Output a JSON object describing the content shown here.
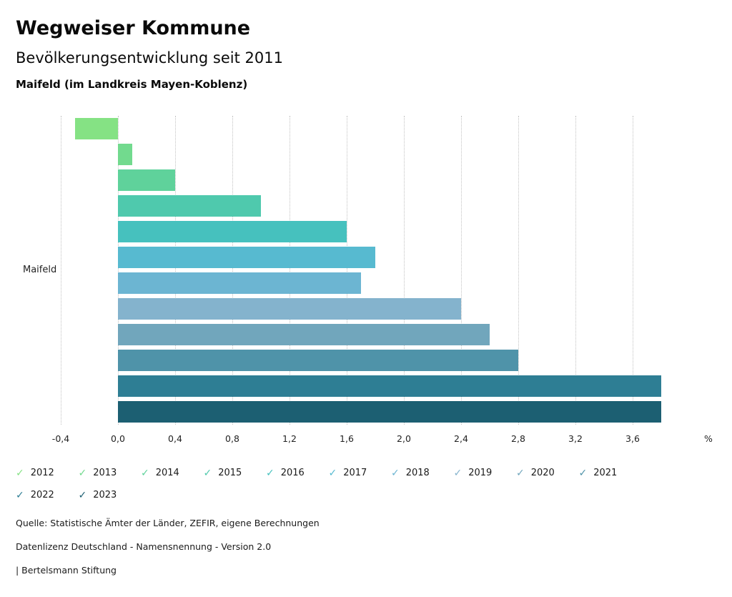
{
  "header": {
    "title": "Wegweiser Kommune",
    "subtitle": "Bevölkerungsentwicklung seit 2011",
    "region": "Maifeld (im Landkreis Mayen-Koblenz)"
  },
  "chart_data": {
    "type": "bar",
    "orientation": "horizontal",
    "title": "Bevölkerungsentwicklung seit 2011",
    "group_label": "Maifeld",
    "categories": [
      "2012",
      "2013",
      "2014",
      "2015",
      "2016",
      "2017",
      "2018",
      "2019",
      "2020",
      "2021",
      "2022",
      "2023"
    ],
    "values": [
      -0.3,
      0.1,
      0.4,
      1.0,
      1.6,
      1.8,
      1.7,
      2.4,
      2.6,
      2.8,
      3.8,
      3.8
    ],
    "colors": [
      "#85e284",
      "#72da8e",
      "#5fd29b",
      "#4fc9ad",
      "#46c1be",
      "#57bad0",
      "#6cb5d2",
      "#84b3cd",
      "#71a6bc",
      "#4f93a9",
      "#2e7e94",
      "#1c5f72"
    ],
    "xlim": [
      -0.4,
      4.05
    ],
    "x_tick_values": [
      -0.4,
      0.0,
      0.4,
      0.8,
      1.2,
      1.6,
      2.0,
      2.4,
      2.8,
      3.2,
      3.6
    ],
    "x_tick_labels": [
      "-0,4",
      "0,0",
      "0,4",
      "0,8",
      "1,2",
      "1,6",
      "2,0",
      "2,4",
      "2,8",
      "3,2",
      "3,6"
    ],
    "x_unit": "%",
    "grid": "vertical-dotted",
    "legend_position": "bottom",
    "legend_check_glyph": "✓"
  },
  "footer": {
    "source": "Quelle: Statistische Ämter der Länder, ZEFIR, eigene Berechnungen",
    "license": "Datenlizenz Deutschland - Namensnennung - Version 2.0",
    "publisher": "| Bertelsmann Stiftung"
  }
}
